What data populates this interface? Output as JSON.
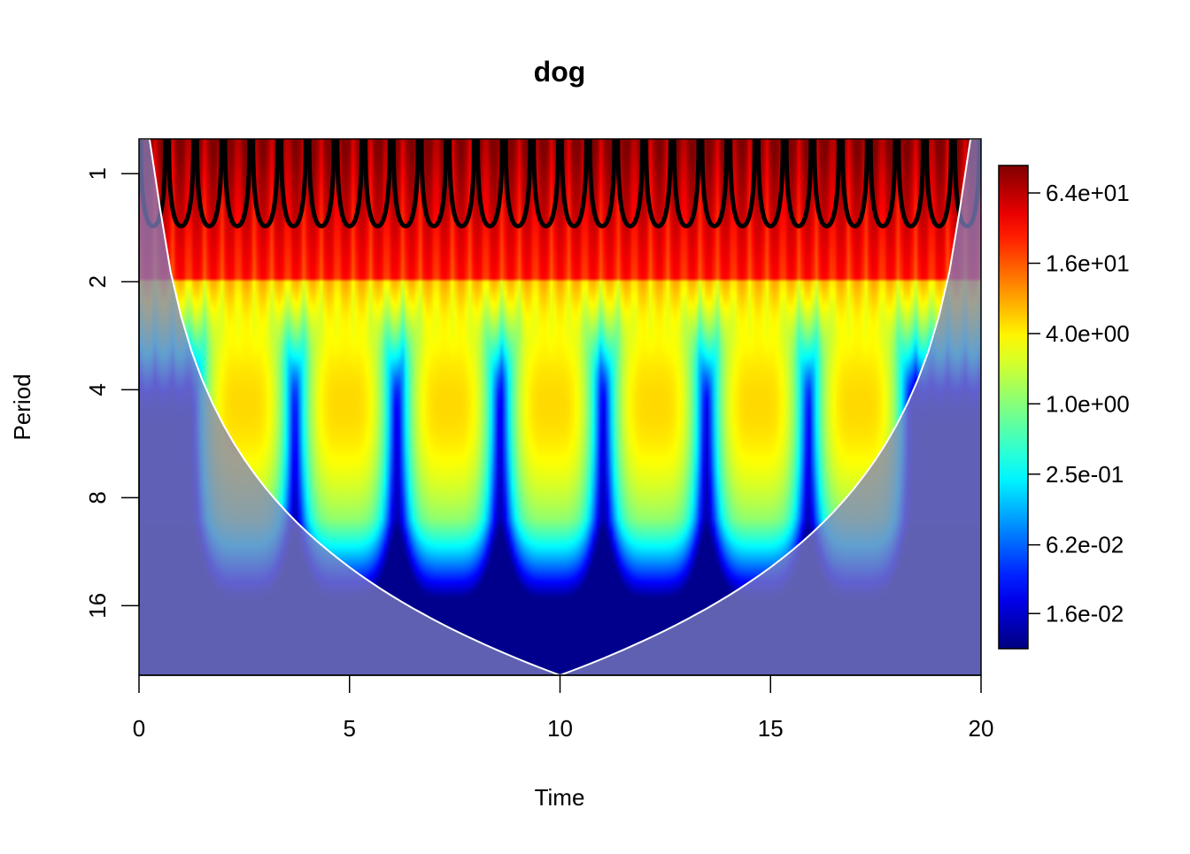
{
  "chart_data": {
    "type": "heatmap",
    "title": "dog",
    "xlabel": "Time",
    "ylabel": "Period",
    "xlim": [
      0,
      20
    ],
    "ylim": [
      0.8,
      25
    ],
    "y_scale": "log2",
    "y_reversed": true,
    "x_ticks": [
      {
        "value": 0,
        "label": "0"
      },
      {
        "value": 5,
        "label": "5"
      },
      {
        "value": 10,
        "label": "10"
      },
      {
        "value": 15,
        "label": "15"
      },
      {
        "value": 20,
        "label": "20"
      }
    ],
    "y_ticks": [
      {
        "value": 1,
        "label": "1"
      },
      {
        "value": 2,
        "label": "2"
      },
      {
        "value": 4,
        "label": "4"
      },
      {
        "value": 8,
        "label": "8"
      },
      {
        "value": 16,
        "label": "16"
      }
    ],
    "colorbar": {
      "scale": "log",
      "colormap": "jet",
      "range": [
        0.008,
        110
      ],
      "ticks": [
        {
          "value": 64,
          "label": "6.4e+01"
        },
        {
          "value": 16,
          "label": "1.6e+01"
        },
        {
          "value": 4,
          "label": "4.0e+00"
        },
        {
          "value": 1,
          "label": "1.0e+00"
        },
        {
          "value": 0.25,
          "label": "2.5e-01"
        },
        {
          "value": 0.062,
          "label": "6.2e-02"
        },
        {
          "value": 0.016,
          "label": "1.6e-02"
        }
      ]
    },
    "features": {
      "band_period": 4.4,
      "band_centers_time": [
        2.5,
        4.9,
        7.35,
        9.8,
        12.25,
        14.7,
        17.1
      ],
      "high_power_period_max": 1.4,
      "cone_of_influence": "shaded-outside",
      "cone_apex_time": 10
    },
    "colors": {
      "coi_shade": "#8080c0",
      "coi_line": "#ffffff",
      "contour": "#000000"
    }
  }
}
